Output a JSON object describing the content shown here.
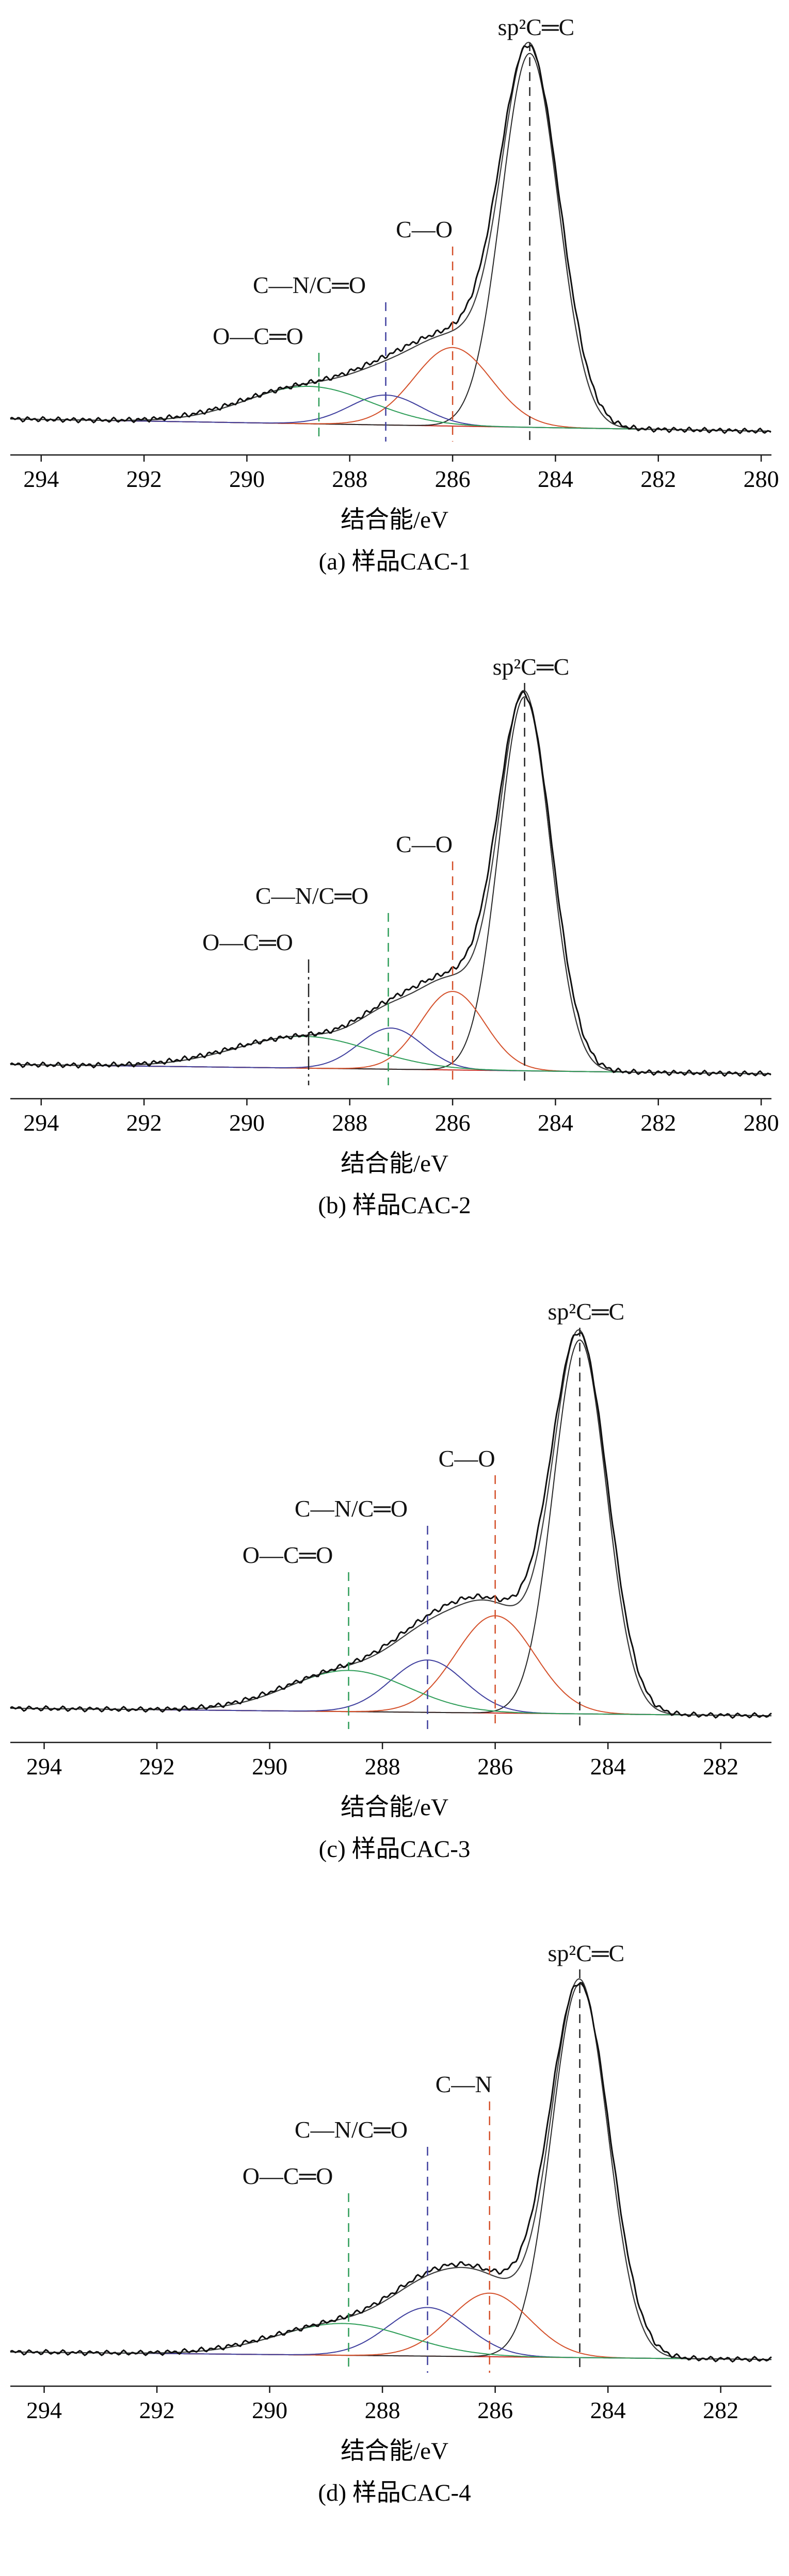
{
  "figure": {
    "background": "#ffffff",
    "xlabel": "结合能/eV"
  },
  "chart_data": [
    {
      "type": "line",
      "caption": "(a) 样品CAC-1",
      "xlabel": "结合能/eV",
      "x_range": [
        294.6,
        279.8
      ],
      "x_ticks": [
        294,
        292,
        290,
        288,
        286,
        284,
        282,
        280
      ],
      "grid": false,
      "legend": "none",
      "data_color": "#0f0f0f",
      "envelope_color": "#3c3c3c",
      "baseline": {
        "left": 0.055,
        "right": 0.022,
        "color": "#c8281e"
      },
      "peaks": [
        {
          "name": "sp2-C=C",
          "center": 284.5,
          "sigma": 0.55,
          "height": 1.0,
          "color": "#262626"
        },
        {
          "name": "C-O",
          "center": 286.0,
          "sigma": 0.75,
          "height": 0.21,
          "color": "#d4502a"
        },
        {
          "name": "C-N/C=O",
          "center": 287.3,
          "sigma": 0.7,
          "height": 0.08,
          "color": "#3f3f9e"
        },
        {
          "name": "O-C=O",
          "center": 288.8,
          "sigma": 1.2,
          "height": 0.1,
          "color": "#2e9d58"
        }
      ],
      "annotations": [
        {
          "label": "sp²C═C",
          "x": 284.5,
          "color": "#222222",
          "style": "dash",
          "label_y": 56,
          "line_top": 70,
          "anchor": "start",
          "dx": -62
        },
        {
          "label": "C—O",
          "x": 286.0,
          "color": "#d4502a",
          "style": "dash",
          "label_y": 448,
          "line_top": 466,
          "anchor": "middle",
          "dx": -55
        },
        {
          "label": "C—N/C═O",
          "x": 287.3,
          "color": "#3f3f9e",
          "style": "dash",
          "label_y": 556,
          "line_top": 574,
          "anchor": "middle",
          "dx": -148
        },
        {
          "label": "O—C═O",
          "x": 288.6,
          "color": "#2e9d58",
          "style": "dash",
          "label_y": 655,
          "line_top": 672,
          "anchor": "middle",
          "dx": -118
        }
      ]
    },
    {
      "type": "line",
      "caption": "(b) 样品CAC-2",
      "xlabel": "结合能/eV",
      "x_range": [
        294.6,
        279.8
      ],
      "x_ticks": [
        294,
        292,
        290,
        288,
        286,
        284,
        282,
        280
      ],
      "grid": false,
      "legend": "none",
      "data_color": "#0f0f0f",
      "envelope_color": "#3c3c3c",
      "baseline": {
        "left": 0.05,
        "right": 0.025,
        "color": "#c8281e"
      },
      "peaks": [
        {
          "name": "sp2-C=C",
          "center": 284.6,
          "sigma": 0.5,
          "height": 1.0,
          "color": "#262626"
        },
        {
          "name": "C-O",
          "center": 286.0,
          "sigma": 0.62,
          "height": 0.21,
          "color": "#d4502a"
        },
        {
          "name": "C-N/C=O",
          "center": 287.2,
          "sigma": 0.62,
          "height": 0.11,
          "color": "#3f3f9e"
        },
        {
          "name": "O-C=O",
          "center": 288.9,
          "sigma": 1.3,
          "height": 0.085,
          "color": "#2e9d58"
        }
      ],
      "annotations": [
        {
          "label": "sp²C═C",
          "x": 284.6,
          "color": "#222222",
          "style": "dash",
          "label_y": 48,
          "line_top": 64,
          "anchor": "start",
          "dx": -62
        },
        {
          "label": "C—O",
          "x": 286.0,
          "color": "#d4502a",
          "style": "dash",
          "label_y": 392,
          "line_top": 410,
          "anchor": "middle",
          "dx": -55
        },
        {
          "label": "C—N/C═O",
          "x": 287.25,
          "color": "#2e9d58",
          "style": "dash",
          "label_y": 492,
          "line_top": 510,
          "anchor": "middle",
          "dx": -148
        },
        {
          "label": "O—C═O",
          "x": 288.8,
          "color": "#222222",
          "style": "dashdot",
          "label_y": 582,
          "line_top": 600,
          "anchor": "middle",
          "dx": -118
        }
      ]
    },
    {
      "type": "line",
      "caption": "(c) 样品CAC-3",
      "xlabel": "结合能/eV",
      "x_range": [
        294.6,
        281.1
      ],
      "x_ticks": [
        294,
        292,
        290,
        288,
        286,
        284,
        282
      ],
      "grid": false,
      "legend": "none",
      "data_color": "#0f0f0f",
      "envelope_color": "#3c3c3c",
      "baseline": {
        "left": 0.05,
        "right": 0.03,
        "color": "#c8281e"
      },
      "peaks": [
        {
          "name": "sp2-C=C",
          "center": 284.5,
          "sigma": 0.47,
          "height": 1.0,
          "color": "#262626"
        },
        {
          "name": "C-O",
          "center": 286.0,
          "sigma": 0.7,
          "height": 0.26,
          "color": "#d4502a"
        },
        {
          "name": "C-N/C=O",
          "center": 287.2,
          "sigma": 0.65,
          "height": 0.14,
          "color": "#3f3f9e"
        },
        {
          "name": "O-C=O",
          "center": 288.6,
          "sigma": 1.05,
          "height": 0.11,
          "color": "#2e9d58"
        }
      ],
      "annotations": [
        {
          "label": "sp²C═C",
          "x": 284.5,
          "color": "#222222",
          "style": "dash",
          "label_y": 50,
          "line_top": 66,
          "anchor": "start",
          "dx": -62
        },
        {
          "label": "C—O",
          "x": 286.0,
          "color": "#d4502a",
          "style": "dash",
          "label_y": 335,
          "line_top": 352,
          "anchor": "middle",
          "dx": -55
        },
        {
          "label": "C—N/C═O",
          "x": 287.2,
          "color": "#3f3f9e",
          "style": "dash",
          "label_y": 432,
          "line_top": 450,
          "anchor": "middle",
          "dx": -148
        },
        {
          "label": "O—C═O",
          "x": 288.6,
          "color": "#2e9d58",
          "style": "dash",
          "label_y": 522,
          "line_top": 540,
          "anchor": "middle",
          "dx": -118
        }
      ]
    },
    {
      "type": "line",
      "caption": "(d) 样品CAC-4",
      "xlabel": "结合能/eV",
      "x_range": [
        294.6,
        281.1
      ],
      "x_ticks": [
        294,
        292,
        290,
        288,
        286,
        284,
        282
      ],
      "grid": false,
      "legend": "none",
      "data_color": "#0f0f0f",
      "envelope_color": "#3c3c3c",
      "baseline": {
        "left": 0.05,
        "right": 0.03,
        "color": "#c8281e"
      },
      "peaks": [
        {
          "name": "sp2-C=C",
          "center": 284.5,
          "sigma": 0.5,
          "height": 1.0,
          "color": "#262626"
        },
        {
          "name": "C-N",
          "center": 286.1,
          "sigma": 0.7,
          "height": 0.17,
          "color": "#d4502a"
        },
        {
          "name": "C-N/C=O",
          "center": 287.2,
          "sigma": 0.7,
          "height": 0.13,
          "color": "#3f3f9e"
        },
        {
          "name": "O-C=O",
          "center": 288.7,
          "sigma": 1.15,
          "height": 0.085,
          "color": "#2e9d58"
        }
      ],
      "annotations": [
        {
          "label": "sp²C═C",
          "x": 284.5,
          "color": "#222222",
          "style": "dash",
          "label_y": 46,
          "line_top": 62,
          "anchor": "start",
          "dx": -62
        },
        {
          "label": "C—N",
          "x": 286.1,
          "color": "#d4502a",
          "style": "dash",
          "label_y": 300,
          "line_top": 318,
          "anchor": "middle",
          "dx": -50
        },
        {
          "label": "C—N/C═O",
          "x": 287.2,
          "color": "#3f3f9e",
          "style": "dash",
          "label_y": 388,
          "line_top": 406,
          "anchor": "middle",
          "dx": -148
        },
        {
          "label": "O—C═O",
          "x": 288.6,
          "color": "#2e9d58",
          "style": "dash",
          "label_y": 478,
          "line_top": 496,
          "anchor": "middle",
          "dx": -118
        }
      ]
    }
  ]
}
